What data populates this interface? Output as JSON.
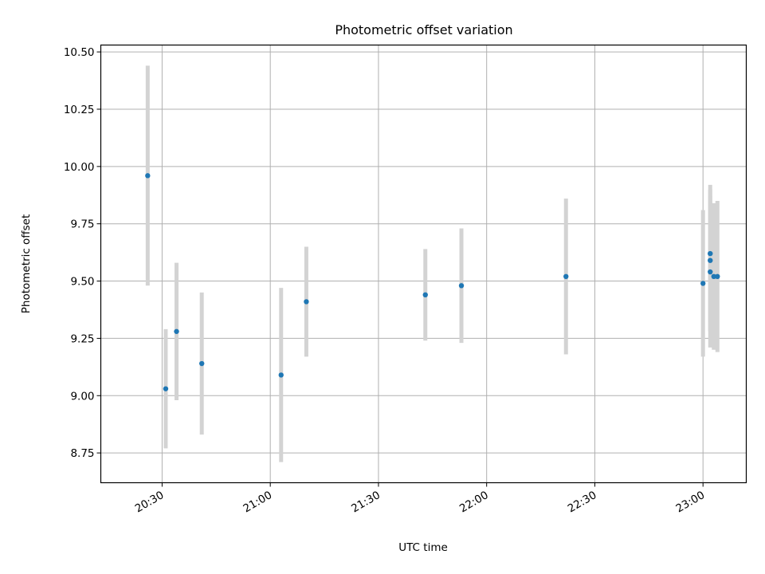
{
  "chart_data": {
    "type": "scatter",
    "title": "Photometric offset variation",
    "xlabel": "UTC time",
    "ylabel": "Photometric offset",
    "xlim": [
      "20:13",
      "23:12"
    ],
    "ylim": [
      8.62,
      10.53
    ],
    "grid": true,
    "x_ticks": [
      "20:30",
      "21:00",
      "21:30",
      "22:00",
      "22:30",
      "23:00"
    ],
    "y_ticks": [
      "8.75",
      "9.00",
      "9.25",
      "9.50",
      "9.75",
      "10.00",
      "10.25",
      "10.50"
    ],
    "marker_color": "#1f77b4",
    "errorbar_color": "#d3d3d3",
    "points": [
      {
        "x": "20:26",
        "y": 9.96,
        "err": 0.48
      },
      {
        "x": "20:31",
        "y": 9.03,
        "err": 0.26
      },
      {
        "x": "20:34",
        "y": 9.28,
        "err": 0.3
      },
      {
        "x": "20:41",
        "y": 9.14,
        "err": 0.31
      },
      {
        "x": "21:03",
        "y": 9.09,
        "err": 0.38
      },
      {
        "x": "21:10",
        "y": 9.41,
        "err": 0.24
      },
      {
        "x": "21:43",
        "y": 9.44,
        "err": 0.2
      },
      {
        "x": "21:53",
        "y": 9.48,
        "err": 0.25
      },
      {
        "x": "22:22",
        "y": 9.52,
        "err": 0.34
      },
      {
        "x": "23:00",
        "y": 9.49,
        "err": 0.32
      },
      {
        "x": "23:02",
        "y": 9.62,
        "err": 0.3
      },
      {
        "x": "23:02",
        "y": 9.59,
        "err": 0.31
      },
      {
        "x": "23:02",
        "y": 9.54,
        "err": 0.33
      },
      {
        "x": "23:03",
        "y": 9.52,
        "err": 0.32
      },
      {
        "x": "23:04",
        "y": 9.52,
        "err": 0.33
      }
    ]
  }
}
